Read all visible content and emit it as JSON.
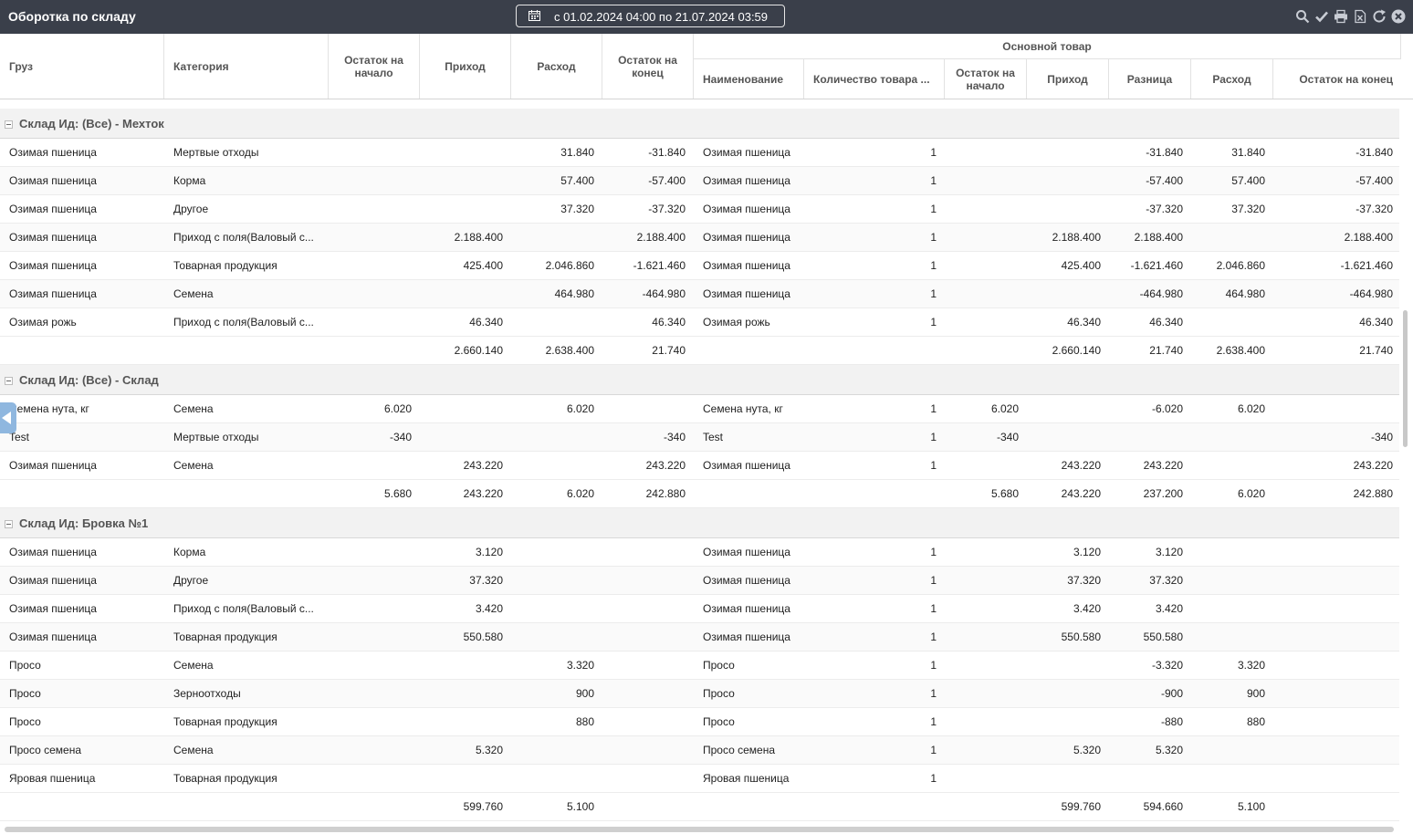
{
  "window": {
    "title": "Оборотка по складу",
    "date_range": "с 01.02.2024 04:00 по 21.07.2024 03:59"
  },
  "toolbar": {
    "icons": [
      "search-icon",
      "check-icon",
      "print-icon",
      "excel-export-icon",
      "refresh-icon",
      "close-icon"
    ]
  },
  "header": {
    "cargo": "Груз",
    "category": "Категория",
    "start_balance": "Остаток на начало",
    "income": "Приход",
    "expense": "Расход",
    "end_balance": "Остаток на конец",
    "main_group": "Основной товар",
    "main_name": "Наименование",
    "main_qty": "Количество товара ...",
    "main_start_balance": "Остаток на начало",
    "main_income": "Приход",
    "main_diff": "Разница",
    "main_expense": "Расход",
    "main_end_balance": "Остаток на конец"
  },
  "groups": [
    {
      "title": "Склад Ид: (Все) - Мехток",
      "rows": [
        [
          "Озимая пшеница",
          "Мертвые отходы",
          "",
          "",
          "31.840",
          "-31.840",
          "Озимая пшеница",
          "1",
          "",
          "",
          "-31.840",
          "31.840",
          "-31.840"
        ],
        [
          "Озимая пшеница",
          "Корма",
          "",
          "",
          "57.400",
          "-57.400",
          "Озимая пшеница",
          "1",
          "",
          "",
          "-57.400",
          "57.400",
          "-57.400"
        ],
        [
          "Озимая пшеница",
          "Другое",
          "",
          "",
          "37.320",
          "-37.320",
          "Озимая пшеница",
          "1",
          "",
          "",
          "-37.320",
          "37.320",
          "-37.320"
        ],
        [
          "Озимая пшеница",
          "Приход с поля(Валовый с...",
          "",
          "2.188.400",
          "",
          "2.188.400",
          "Озимая пшеница",
          "1",
          "",
          "2.188.400",
          "2.188.400",
          "",
          "2.188.400"
        ],
        [
          "Озимая пшеница",
          "Товарная продукция",
          "",
          "425.400",
          "2.046.860",
          "-1.621.460",
          "Озимая пшеница",
          "1",
          "",
          "425.400",
          "-1.621.460",
          "2.046.860",
          "-1.621.460"
        ],
        [
          "Озимая пшеница",
          "Семена",
          "",
          "",
          "464.980",
          "-464.980",
          "Озимая пшеница",
          "1",
          "",
          "",
          "-464.980",
          "464.980",
          "-464.980"
        ],
        [
          "Озимая рожь",
          "Приход с поля(Валовый с...",
          "",
          "46.340",
          "",
          "46.340",
          "Озимая рожь",
          "1",
          "",
          "46.340",
          "46.340",
          "",
          "46.340"
        ]
      ],
      "total": [
        "",
        "",
        "",
        "2.660.140",
        "2.638.400",
        "21.740",
        "",
        "",
        "",
        "2.660.140",
        "21.740",
        "2.638.400",
        "21.740"
      ]
    },
    {
      "title": "Склад Ид: (Все) - Склад",
      "rows": [
        [
          "Семена нута, кг",
          "Семена",
          "6.020",
          "",
          "6.020",
          "",
          "Семена нута, кг",
          "1",
          "6.020",
          "",
          "-6.020",
          "6.020",
          ""
        ],
        [
          "Test",
          "Мертвые отходы",
          "-340",
          "",
          "",
          "-340",
          "Test",
          "1",
          "-340",
          "",
          "",
          "",
          "-340"
        ],
        [
          "Озимая пшеница",
          "Семена",
          "",
          "243.220",
          "",
          "243.220",
          "Озимая пшеница",
          "1",
          "",
          "243.220",
          "243.220",
          "",
          "243.220"
        ]
      ],
      "total": [
        "",
        "",
        "5.680",
        "243.220",
        "6.020",
        "242.880",
        "",
        "",
        "5.680",
        "243.220",
        "237.200",
        "6.020",
        "242.880"
      ]
    },
    {
      "title": "Склад Ид: Бровка №1",
      "rows": [
        [
          "Озимая пшеница",
          "Корма",
          "",
          "3.120",
          "",
          "",
          "Озимая пшеница",
          "1",
          "",
          "3.120",
          "3.120",
          "",
          ""
        ],
        [
          "Озимая пшеница",
          "Другое",
          "",
          "37.320",
          "",
          "",
          "Озимая пшеница",
          "1",
          "",
          "37.320",
          "37.320",
          "",
          ""
        ],
        [
          "Озимая пшеница",
          "Приход с поля(Валовый с...",
          "",
          "3.420",
          "",
          "",
          "Озимая пшеница",
          "1",
          "",
          "3.420",
          "3.420",
          "",
          ""
        ],
        [
          "Озимая пшеница",
          "Товарная продукция",
          "",
          "550.580",
          "",
          "",
          "Озимая пшеница",
          "1",
          "",
          "550.580",
          "550.580",
          "",
          ""
        ],
        [
          "Просо",
          "Семена",
          "",
          "",
          "3.320",
          "",
          "Просо",
          "1",
          "",
          "",
          "-3.320",
          "3.320",
          ""
        ],
        [
          "Просо",
          "Зерноотходы",
          "",
          "",
          "900",
          "",
          "Просо",
          "1",
          "",
          "",
          "-900",
          "900",
          ""
        ],
        [
          "Просо",
          "Товарная продукция",
          "",
          "",
          "880",
          "",
          "Просо",
          "1",
          "",
          "",
          "-880",
          "880",
          ""
        ],
        [
          "Просо семена",
          "Семена",
          "",
          "5.320",
          "",
          "",
          "Просо семена",
          "1",
          "",
          "5.320",
          "5.320",
          "",
          ""
        ],
        [
          "Яровая пшеница",
          "Товарная продукция",
          "",
          "",
          "",
          "",
          "Яровая пшеница",
          "1",
          "",
          "",
          "",
          "",
          ""
        ]
      ],
      "total": [
        "",
        "",
        "",
        "599.760",
        "5.100",
        "",
        "",
        "",
        "",
        "599.760",
        "594.660",
        "5.100",
        ""
      ]
    }
  ]
}
